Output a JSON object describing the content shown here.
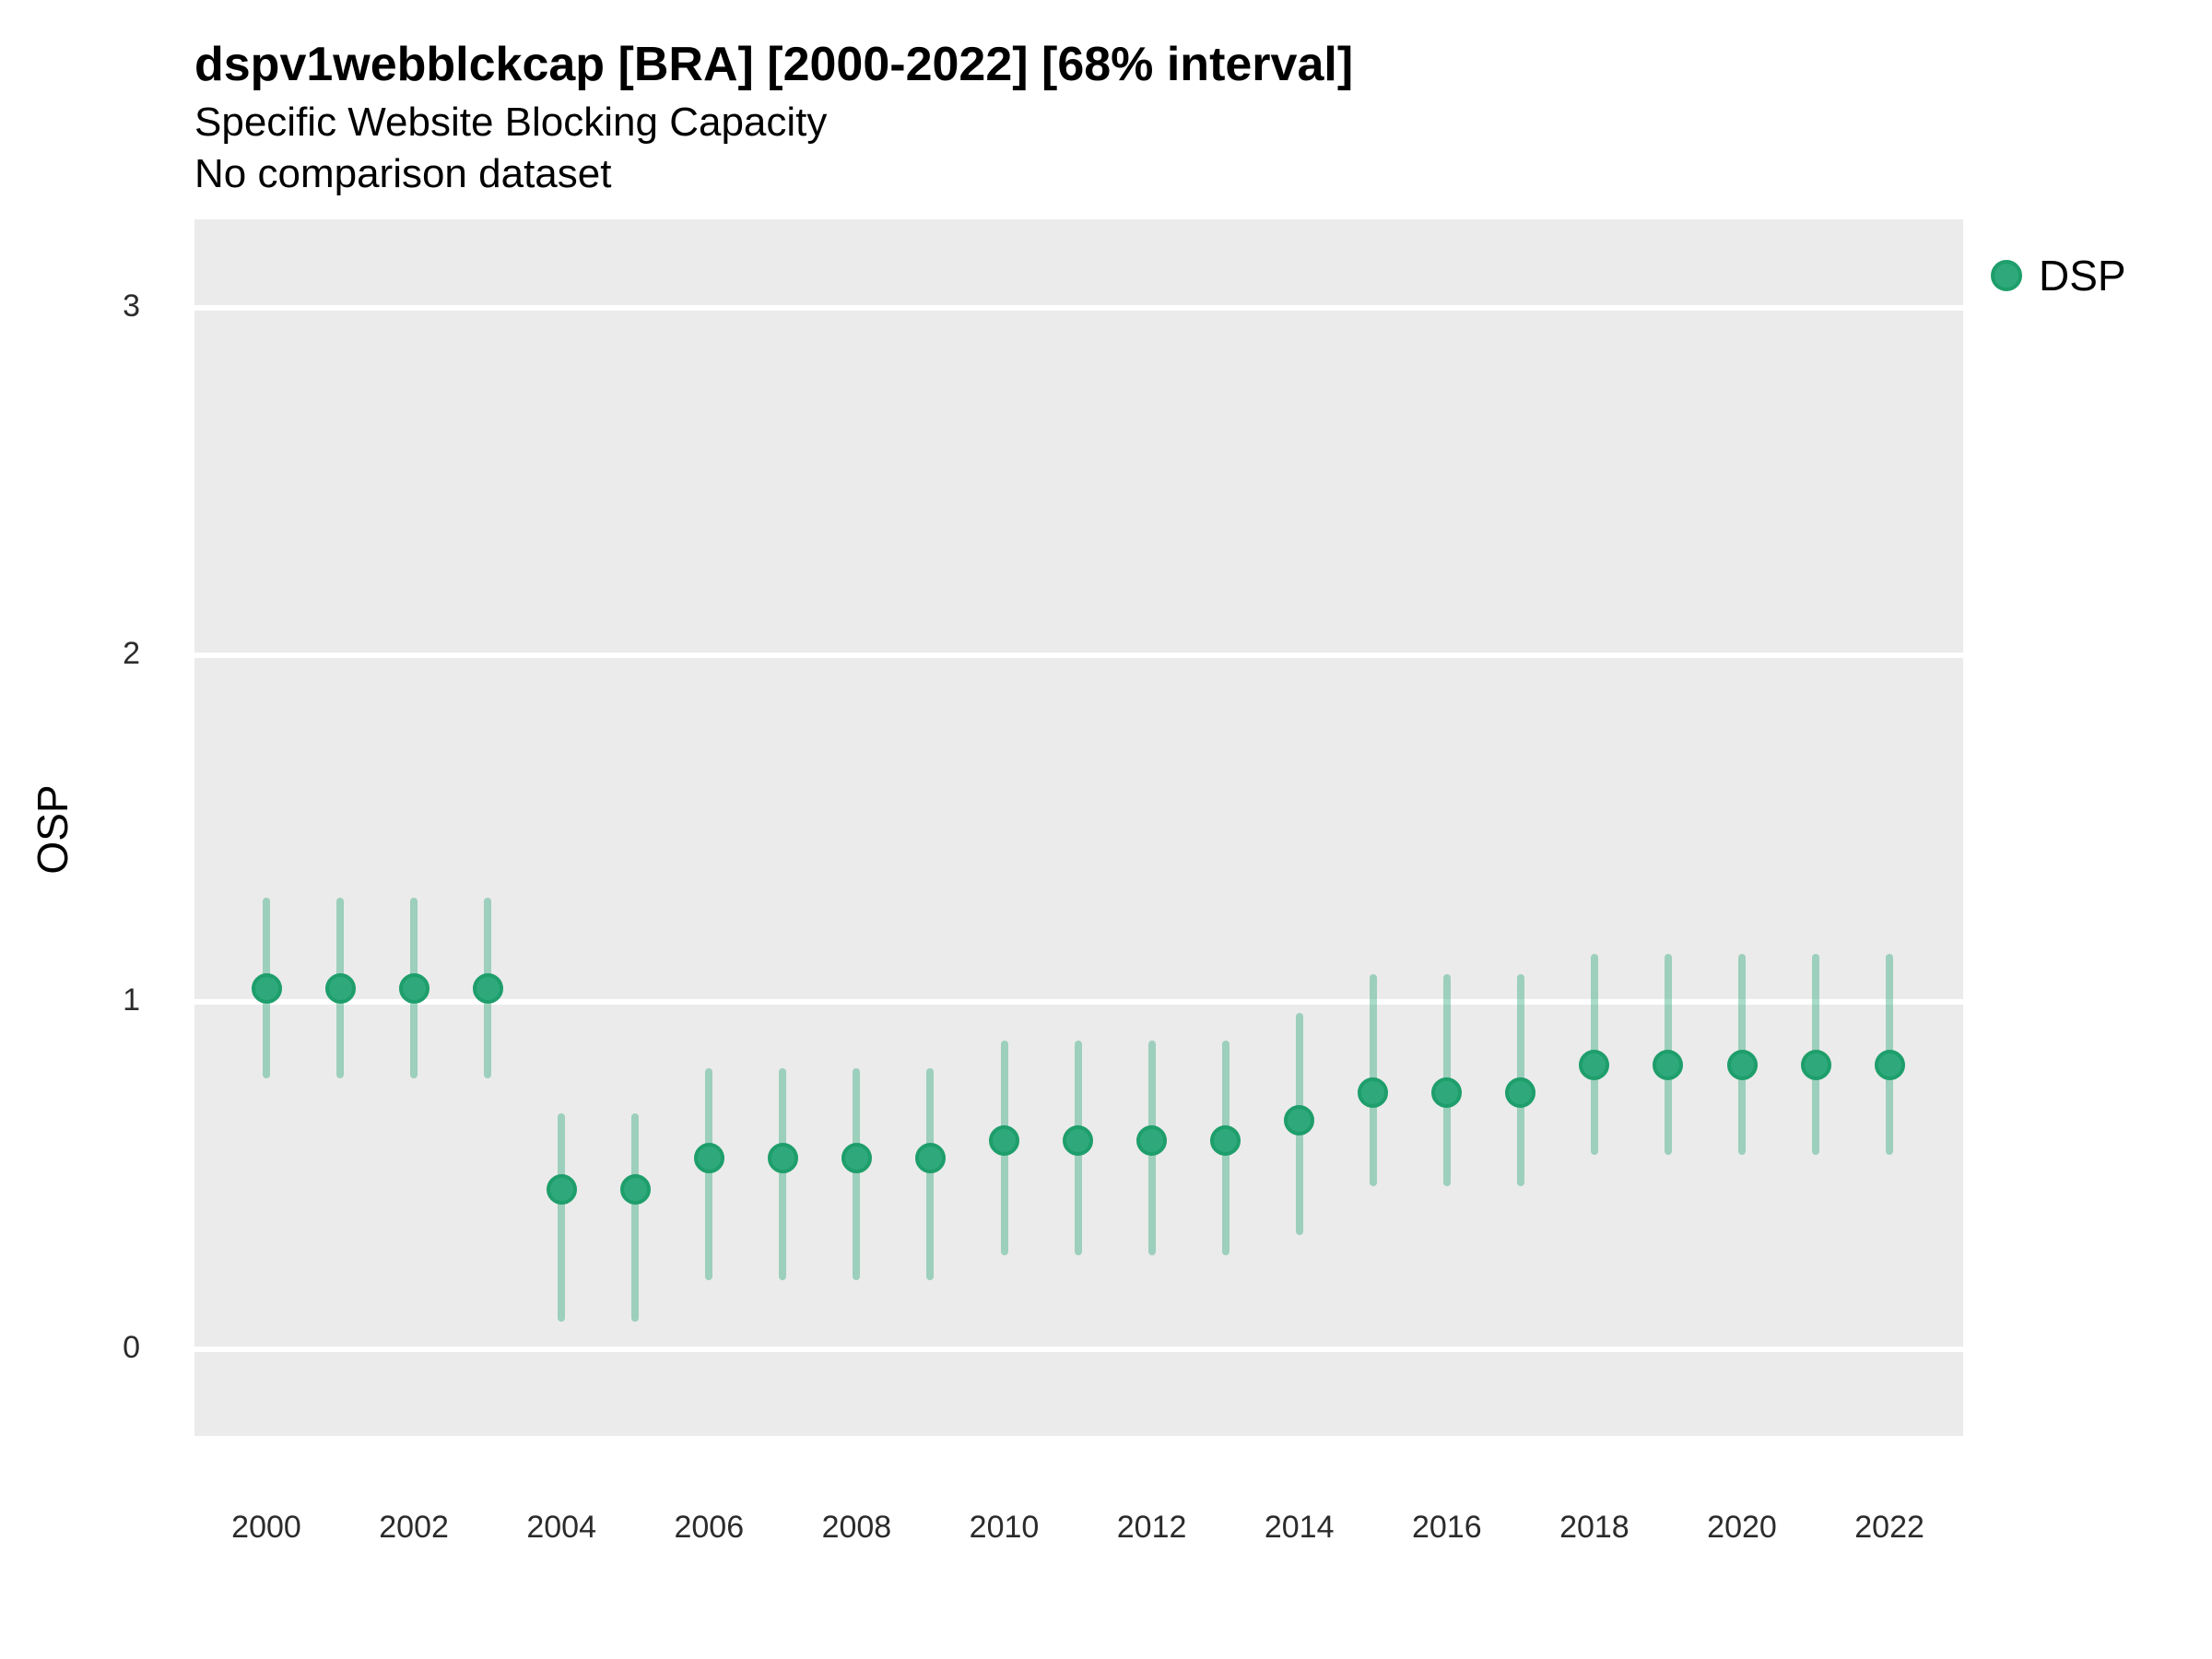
{
  "header": {
    "title": "dspv1webblckcap [BRA] [2000-2022] [68% interval]",
    "subtitle": "Specific Website Blocking Capacity",
    "note": "No comparison dataset"
  },
  "legend": {
    "label": "DSP",
    "position": "right-top"
  },
  "axes": {
    "y_label": "OSP",
    "y_ticks": [
      0,
      1,
      2,
      3
    ],
    "x_ticks": [
      2000,
      2002,
      2004,
      2006,
      2008,
      2010,
      2012,
      2014,
      2016,
      2018,
      2020,
      2022
    ]
  },
  "colors": {
    "panel_background": "#EBEBEB",
    "gridline": "#FFFFFF",
    "point_fill": "#2FA97C",
    "point_stroke": "#1E9E6B",
    "errorbar": "rgba(47,169,124,0.42)",
    "text": "#000000",
    "tick_text": "#2B2B2B"
  },
  "chart_data": {
    "type": "scatter",
    "title": "dspv1webblckcap [BRA] [2000-2022] [68% interval]",
    "subtitle": "Specific Website Blocking Capacity",
    "note": "No comparison dataset",
    "xlabel": "",
    "ylabel": "OSP",
    "ylim": [
      -0.25,
      3.26
    ],
    "xlim": [
      1999,
      2023
    ],
    "grid": "major-horizontal white gridlines on gray panel",
    "legend_position": "right-top",
    "interval_level": "68%",
    "x": [
      2000,
      2001,
      2002,
      2003,
      2004,
      2005,
      2006,
      2007,
      2008,
      2009,
      2010,
      2011,
      2012,
      2013,
      2014,
      2015,
      2016,
      2017,
      2018,
      2019,
      2020,
      2021,
      2022
    ],
    "series": [
      {
        "name": "DSP",
        "values": [
          1.04,
          1.04,
          1.04,
          1.04,
          0.46,
          0.46,
          0.55,
          0.55,
          0.55,
          0.55,
          0.6,
          0.6,
          0.6,
          0.6,
          0.66,
          0.74,
          0.74,
          0.74,
          0.82,
          0.82,
          0.82,
          0.82,
          0.82
        ],
        "lower_68": [
          0.78,
          0.78,
          0.78,
          0.78,
          0.08,
          0.08,
          0.2,
          0.2,
          0.2,
          0.2,
          0.27,
          0.27,
          0.27,
          0.27,
          0.33,
          0.47,
          0.47,
          0.47,
          0.56,
          0.56,
          0.56,
          0.56,
          0.56
        ],
        "upper_68": [
          1.3,
          1.3,
          1.3,
          1.3,
          0.68,
          0.68,
          0.81,
          0.81,
          0.81,
          0.81,
          0.89,
          0.89,
          0.89,
          0.89,
          0.97,
          1.08,
          1.08,
          1.08,
          1.14,
          1.14,
          1.14,
          1.14,
          1.14
        ]
      }
    ]
  }
}
